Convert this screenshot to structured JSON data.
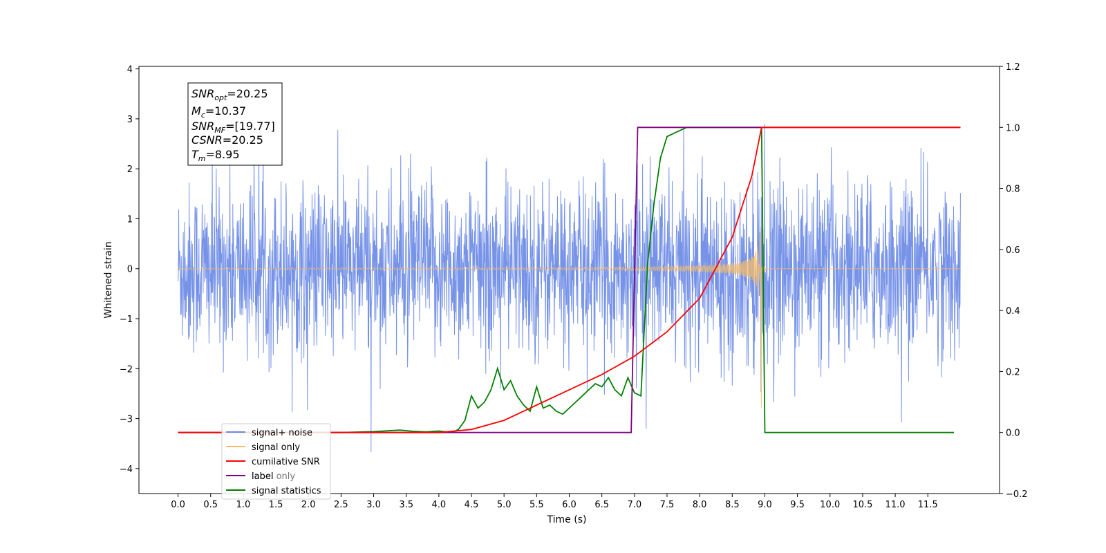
{
  "chart_data": {
    "type": "line",
    "xlabel": "Time (s)",
    "ylabel": "Whitened strain",
    "xlim": [
      -0.6,
      12.6
    ],
    "ylim": [
      -4.5,
      4.05
    ],
    "y2lim": [
      -0.2,
      1.2
    ],
    "x_ticks": [
      "0.0",
      "0.5",
      "1.0",
      "1.5",
      "2.0",
      "2.5",
      "3.0",
      "3.5",
      "4.0",
      "4.5",
      "5.0",
      "5.5",
      "6.0",
      "6.5",
      "7.0",
      "7.5",
      "8.0",
      "8.5",
      "9.0",
      "9.5",
      "10.0",
      "10.5",
      "11.0",
      "11.5"
    ],
    "y_ticks": [
      "4",
      "3",
      "2",
      "1",
      "0",
      "−1",
      "−2",
      "−3",
      "−4"
    ],
    "y2_ticks": [
      "1.2",
      "1.0",
      "0.8",
      "0.6",
      "0.4",
      "0.2",
      "0.0",
      "−0.2"
    ],
    "grid": false,
    "legend_position": "lower-left",
    "annotation": {
      "snr_opt": "=20.25",
      "mc": "=10.37",
      "snr_mf": "=[19.77]",
      "csnr": "=20.25",
      "tm": "=8.95"
    },
    "series": [
      {
        "name": "signal+ noise",
        "axis": "left",
        "color": "#6b8ae6",
        "description_of_values": "white noise, std ~0.8, t 0–12, spikes to about +3.6 / −4.1",
        "x": [
          0,
          12
        ],
        "envelope": [
          2.4,
          -2.4
        ]
      },
      {
        "name": "signal only",
        "axis": "left",
        "color": "#f5bd6a",
        "chirp_start": 0.0,
        "merger_time": 8.95,
        "peak_amplitude": 3.3
      },
      {
        "name": "cumilative SNR",
        "axis": "right",
        "color": "#ff0000",
        "x": [
          0,
          4.0,
          4.5,
          5.0,
          5.5,
          6.0,
          6.5,
          7.0,
          7.5,
          8.0,
          8.5,
          8.8,
          8.95,
          9.0,
          12.0
        ],
        "values": [
          0,
          0,
          0.01,
          0.04,
          0.09,
          0.14,
          0.19,
          0.25,
          0.33,
          0.44,
          0.64,
          0.84,
          1.0,
          1.0,
          1.0
        ]
      },
      {
        "name": "label",
        "axis": "right",
        "color": "#800080",
        "x": [
          0,
          6.95,
          7.05,
          8.95,
          9.0,
          12.0
        ],
        "values": [
          0,
          0,
          1,
          1,
          1,
          1
        ]
      },
      {
        "name": "label only",
        "axis": "right",
        "color": "#800080"
      },
      {
        "name": "signal statistics",
        "axis": "right",
        "color": "#008000",
        "x": [
          0,
          2.5,
          3.0,
          3.4,
          3.6,
          3.8,
          4.0,
          4.2,
          4.3,
          4.4,
          4.5,
          4.6,
          4.7,
          4.8,
          4.9,
          5.0,
          5.1,
          5.2,
          5.3,
          5.4,
          5.5,
          5.6,
          5.7,
          5.8,
          5.9,
          6.0,
          6.1,
          6.2,
          6.3,
          6.4,
          6.5,
          6.6,
          6.7,
          6.8,
          6.9,
          7.0,
          7.1,
          7.2,
          7.3,
          7.4,
          7.5,
          7.6,
          7.7,
          7.8,
          8.0,
          8.9,
          8.95,
          9.0,
          11.9
        ],
        "values": [
          0,
          0,
          0.003,
          0.008,
          0.004,
          0.002,
          0.005,
          0.0,
          0.01,
          0.04,
          0.12,
          0.08,
          0.1,
          0.14,
          0.21,
          0.14,
          0.17,
          0.12,
          0.09,
          0.07,
          0.15,
          0.08,
          0.09,
          0.07,
          0.06,
          0.08,
          0.1,
          0.12,
          0.14,
          0.16,
          0.15,
          0.18,
          0.14,
          0.12,
          0.18,
          0.13,
          0.12,
          0.55,
          0.75,
          0.9,
          0.97,
          0.98,
          0.99,
          1.0,
          1.0,
          1.0,
          1.0,
          0.0,
          0.0
        ]
      }
    ]
  }
}
